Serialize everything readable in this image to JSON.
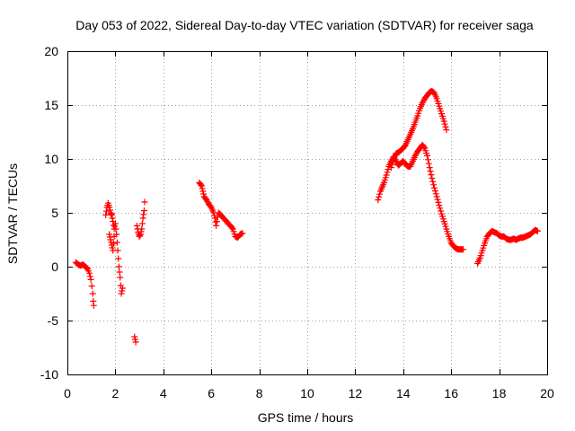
{
  "chart_data": {
    "type": "scatter",
    "title": "Day 053 of 2022, Sidereal Day-to-day VTEC variation (SDTVAR) for receiver saga",
    "xlabel": "GPS time / hours",
    "ylabel": "SDTVAR / TECUs",
    "xlim": [
      0,
      20
    ],
    "ylim": [
      -10,
      20
    ],
    "xticks": [
      0,
      2,
      4,
      6,
      8,
      10,
      12,
      14,
      16,
      18,
      20
    ],
    "yticks": [
      -10,
      -5,
      0,
      5,
      10,
      15,
      20
    ],
    "xtick_labels": [
      "0",
      "2",
      "4",
      "6",
      "8",
      "10",
      "12",
      "14",
      "16",
      "18",
      "20"
    ],
    "ytick_labels": [
      "-10",
      "-5",
      "0",
      "5",
      "10",
      "15",
      "20"
    ],
    "grid": true,
    "marker": "+",
    "color": "#ff0000",
    "series": [
      {
        "name": "SDTVAR",
        "segments": [
          [
            [
              0.35,
              0.4
            ],
            [
              0.45,
              0.2
            ],
            [
              0.55,
              0.1
            ],
            [
              0.65,
              0.2
            ],
            [
              0.75,
              0.0
            ],
            [
              0.85,
              -0.2
            ],
            [
              0.92,
              -0.6
            ],
            [
              0.98,
              -1.2
            ],
            [
              1.02,
              -1.8
            ],
            [
              1.06,
              -2.5
            ],
            [
              1.08,
              -3.2
            ],
            [
              1.1,
              -3.6
            ]
          ],
          [
            [
              1.6,
              4.8
            ],
            [
              1.65,
              5.5
            ],
            [
              1.7,
              5.9
            ],
            [
              1.75,
              5.5
            ],
            [
              1.8,
              5.0
            ],
            [
              1.85,
              4.8
            ],
            [
              1.9,
              4.2
            ],
            [
              1.95,
              3.5
            ],
            [
              2.0,
              4.0
            ],
            [
              2.05,
              3.0
            ],
            [
              2.1,
              1.5
            ],
            [
              2.15,
              0.0
            ],
            [
              2.2,
              -1.0
            ],
            [
              2.25,
              -2.5
            ],
            [
              2.3,
              -2.0
            ]
          ],
          [
            [
              1.75,
              3.0
            ],
            [
              1.8,
              2.5
            ],
            [
              1.85,
              2.0
            ],
            [
              1.9,
              1.5
            ],
            [
              1.95,
              2.8
            ]
          ],
          [
            [
              2.8,
              -6.5
            ],
            [
              2.85,
              -7.0
            ]
          ],
          [
            [
              2.9,
              3.8
            ],
            [
              2.95,
              3.2
            ],
            [
              3.0,
              2.8
            ],
            [
              3.05,
              3.0
            ],
            [
              3.1,
              3.5
            ],
            [
              3.15,
              4.5
            ],
            [
              3.2,
              5.2
            ],
            [
              3.22,
              6.0
            ]
          ],
          [
            [
              5.5,
              7.8
            ],
            [
              5.6,
              7.5
            ],
            [
              5.65,
              7.0
            ],
            [
              5.7,
              6.5
            ],
            [
              5.8,
              6.2
            ],
            [
              5.9,
              5.8
            ],
            [
              6.0,
              5.5
            ],
            [
              6.1,
              5.0
            ],
            [
              6.15,
              4.5
            ],
            [
              6.2,
              3.8
            ],
            [
              6.3,
              5.0
            ],
            [
              6.4,
              4.8
            ],
            [
              6.5,
              4.5
            ],
            [
              6.6,
              4.3
            ],
            [
              6.7,
              4.0
            ],
            [
              6.8,
              3.8
            ],
            [
              6.9,
              3.5
            ],
            [
              7.0,
              2.8
            ],
            [
              7.1,
              2.7
            ],
            [
              7.2,
              3.0
            ],
            [
              7.3,
              3.1
            ]
          ],
          [
            [
              12.95,
              6.2
            ],
            [
              13.05,
              7.0
            ],
            [
              13.2,
              7.8
            ],
            [
              13.3,
              8.5
            ],
            [
              13.4,
              9.3
            ],
            [
              13.5,
              9.8
            ],
            [
              13.6,
              10.2
            ],
            [
              13.7,
              9.8
            ],
            [
              13.8,
              9.4
            ],
            [
              13.9,
              9.6
            ],
            [
              14.0,
              9.8
            ],
            [
              14.1,
              9.5
            ],
            [
              14.2,
              9.3
            ],
            [
              14.3,
              9.3
            ],
            [
              14.4,
              9.8
            ],
            [
              14.5,
              10.3
            ],
            [
              14.6,
              10.7
            ],
            [
              14.7,
              11.0
            ],
            [
              14.8,
              11.3
            ],
            [
              14.9,
              11.0
            ],
            [
              15.0,
              10.3
            ],
            [
              15.1,
              9.2
            ],
            [
              15.2,
              8.2
            ],
            [
              15.3,
              7.3
            ],
            [
              15.4,
              6.5
            ],
            [
              15.5,
              5.7
            ],
            [
              15.6,
              4.9
            ],
            [
              15.7,
              4.2
            ],
            [
              15.8,
              3.5
            ],
            [
              15.9,
              2.8
            ],
            [
              16.0,
              2.2
            ],
            [
              16.1,
              1.9
            ],
            [
              16.2,
              1.7
            ],
            [
              16.3,
              1.6
            ],
            [
              16.4,
              1.6
            ],
            [
              16.5,
              1.6
            ]
          ],
          [
            [
              13.5,
              9.2
            ],
            [
              13.6,
              10.0
            ],
            [
              13.7,
              10.5
            ],
            [
              13.8,
              10.6
            ],
            [
              13.9,
              10.8
            ],
            [
              14.0,
              11.0
            ],
            [
              14.1,
              11.3
            ],
            [
              14.2,
              11.8
            ],
            [
              14.3,
              12.3
            ],
            [
              14.4,
              12.8
            ],
            [
              14.5,
              13.4
            ],
            [
              14.6,
              14.0
            ],
            [
              14.7,
              14.7
            ],
            [
              14.8,
              15.2
            ],
            [
              14.9,
              15.6
            ],
            [
              15.0,
              15.9
            ],
            [
              15.1,
              16.2
            ],
            [
              15.2,
              16.3
            ],
            [
              15.3,
              16.1
            ],
            [
              15.4,
              15.6
            ],
            [
              15.5,
              14.9
            ],
            [
              15.6,
              14.2
            ],
            [
              15.7,
              13.5
            ],
            [
              15.8,
              12.7
            ]
          ],
          [
            [
              17.1,
              0.3
            ],
            [
              17.2,
              0.8
            ],
            [
              17.3,
              1.5
            ],
            [
              17.4,
              2.2
            ],
            [
              17.5,
              2.8
            ],
            [
              17.6,
              3.1
            ],
            [
              17.7,
              3.3
            ],
            [
              17.8,
              3.2
            ],
            [
              17.9,
              3.1
            ],
            [
              18.0,
              2.9
            ],
            [
              18.1,
              2.8
            ],
            [
              18.2,
              2.8
            ],
            [
              18.3,
              2.6
            ],
            [
              18.4,
              2.5
            ],
            [
              18.5,
              2.5
            ],
            [
              18.6,
              2.6
            ],
            [
              18.7,
              2.5
            ],
            [
              18.8,
              2.6
            ],
            [
              18.9,
              2.7
            ],
            [
              19.0,
              2.7
            ],
            [
              19.1,
              2.8
            ],
            [
              19.2,
              2.9
            ],
            [
              19.3,
              3.0
            ],
            [
              19.4,
              3.2
            ],
            [
              19.5,
              3.4
            ],
            [
              19.6,
              3.3
            ]
          ]
        ]
      }
    ]
  }
}
